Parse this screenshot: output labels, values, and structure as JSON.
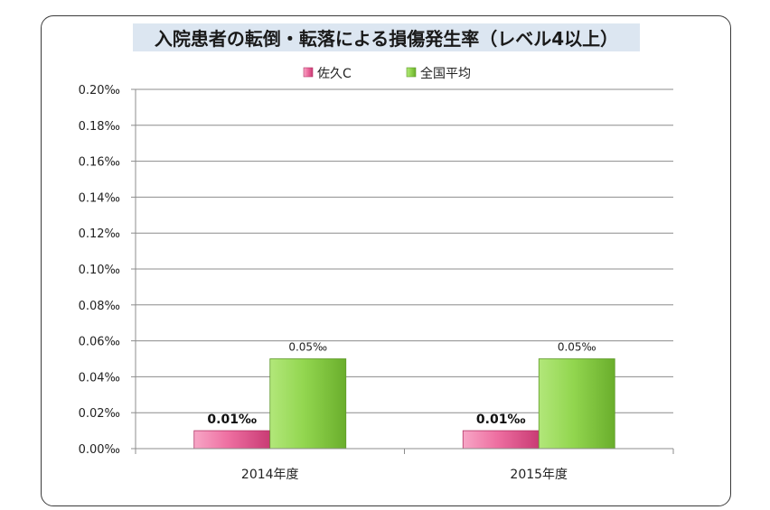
{
  "chart_data": {
    "type": "bar",
    "title": "入院患者の転倒・転落による損傷発生率（レベル4以上）",
    "categories": [
      "2014年度",
      "2015年度"
    ],
    "series": [
      {
        "name": "佐久C",
        "values": [
          0.01,
          0.01
        ],
        "labels": [
          "0.01‰",
          "0.01‰"
        ],
        "color": "#e8578f"
      },
      {
        "name": "全国平均",
        "values": [
          0.05,
          0.05
        ],
        "labels": [
          "0.05‰",
          "0.05‰"
        ],
        "color": "#8fd44a"
      }
    ],
    "ylim": [
      0,
      0.2
    ],
    "yticks": [
      0,
      0.02,
      0.04,
      0.06,
      0.08,
      0.1,
      0.12,
      0.14,
      0.16,
      0.18,
      0.2
    ],
    "ytick_labels": [
      "0.00‰",
      "0.02‰",
      "0.04‰",
      "0.06‰",
      "0.08‰",
      "0.10‰",
      "0.12‰",
      "0.14‰",
      "0.16‰",
      "0.18‰",
      "0.20‰"
    ],
    "grid": true,
    "legend_position": "top"
  }
}
